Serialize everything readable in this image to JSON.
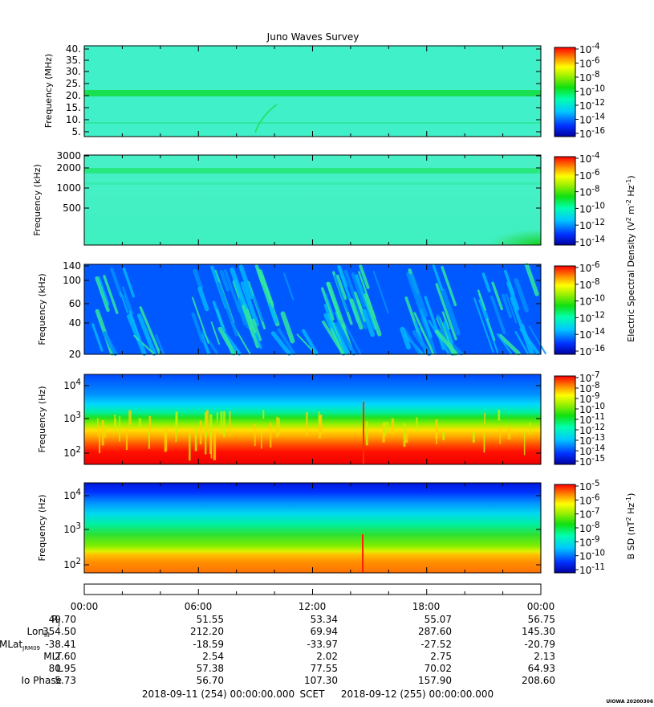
{
  "title": "Juno Waves Survey",
  "colors": {
    "frame": "#000000"
  },
  "chart_data": [
    {
      "type": "heatmap",
      "panel": "hfr-high",
      "ylabel": "Frequency (MHz)",
      "yticks": [
        "40.",
        "35.",
        "30.",
        "25.",
        "20.",
        "15.",
        "10.",
        "5."
      ],
      "ylim": [
        3.8,
        41
      ],
      "features": [
        {
          "kind": "band",
          "y": 21.0,
          "width": 1.4,
          "level": "green"
        },
        {
          "kind": "band",
          "y": 9.0,
          "width": 0.4,
          "level": "green-faint"
        }
      ],
      "colorbar": {
        "ticks": [
          "10^-4",
          "10^-6",
          "10^-8",
          "10^-10",
          "10^-12",
          "10^-14",
          "10^-16"
        ]
      }
    },
    {
      "type": "heatmap",
      "panel": "hfr-low",
      "ylabel": "Frequency (kHz)",
      "yticks": [
        "3000",
        "2000",
        "1000",
        "500"
      ],
      "ylim": [
        140,
        3000
      ],
      "log": true,
      "features": [
        {
          "kind": "band",
          "y": 1800,
          "width": 120,
          "level": "green"
        },
        {
          "kind": "band",
          "y": 1250,
          "width": 60,
          "level": "green-faint"
        }
      ],
      "colorbar": {
        "ticks": [
          "10^-4",
          "10^-6",
          "10^-8",
          "10^-10",
          "10^-12",
          "10^-14"
        ]
      }
    },
    {
      "type": "heatmap",
      "panel": "lfr-high",
      "ylabel": "Frequency (kHz)",
      "yticks": [
        "140",
        "100",
        "60",
        "40",
        "20"
      ],
      "ylim": [
        20,
        140
      ],
      "colorbar": {
        "ticks": [
          "10^-6",
          "10^-8",
          "10^-10",
          "10^-12",
          "10^-14",
          "10^-16"
        ]
      }
    },
    {
      "type": "heatmap",
      "panel": "lfr-low",
      "ylabel": "Frequency (Hz)",
      "yticks": [
        "10^4",
        "10^3",
        "10^2"
      ],
      "ylim": [
        50,
        20000
      ],
      "log": true,
      "colorbar": {
        "ticks": [
          "10^-7",
          "10^-8",
          "10^-9",
          "10^-10",
          "10^-11",
          "10^-12",
          "10^-13",
          "10^-14",
          "10^-15"
        ]
      }
    },
    {
      "type": "heatmap",
      "panel": "magnetic",
      "ylabel": "Frequency (Hz)",
      "yticks": [
        "10^4",
        "10^3",
        "10^2"
      ],
      "ylim": [
        50,
        20000
      ],
      "log": true,
      "colorbar": {
        "ticks": [
          "10^-5",
          "10^-6",
          "10^-7",
          "10^-8",
          "10^-9",
          "10^-10",
          "10^-11"
        ]
      }
    }
  ],
  "colorbar_titles": {
    "electric": "Electric Spectral Density (V^2 m^-2 Hz^-1)",
    "magnetic": "B SD (nT^2 Hz^-1)"
  },
  "ephemeris": {
    "times": [
      "00:00",
      "06:00",
      "12:00",
      "18:00",
      "00:00"
    ],
    "rows": [
      {
        "label": "R_J",
        "values": [
          "49.70",
          "51.55",
          "53.34",
          "55.07",
          "56.75"
        ]
      },
      {
        "label": "Lon_III",
        "values": [
          "354.50",
          "212.20",
          "69.94",
          "287.60",
          "145.30"
        ]
      },
      {
        "label": "MLat_JRM09",
        "values": [
          "-38.41",
          "-18.59",
          "-33.97",
          "-27.52",
          "-20.79"
        ]
      },
      {
        "label": "MLT",
        "values": [
          "2.60",
          "2.54",
          "2.02",
          "2.75",
          "2.13"
        ]
      },
      {
        "label": "L",
        "values": [
          "80.95",
          "57.38",
          "77.55",
          "70.02",
          "64.93"
        ]
      },
      {
        "label": "Io Phase",
        "values": [
          "5.73",
          "56.70",
          "107.30",
          "157.90",
          "208.60"
        ]
      }
    ]
  },
  "footer": {
    "start": "2018-09-11 (254) 00:00:00.000",
    "scet": "SCET",
    "end": "2018-09-12 (255) 00:00:00.000",
    "stamp": "UIOWA 20200306"
  }
}
